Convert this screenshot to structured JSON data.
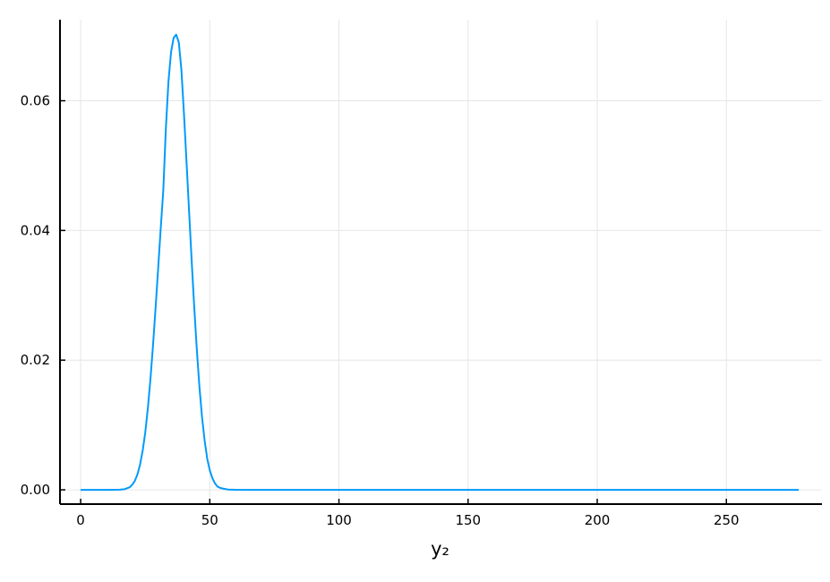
{
  "chart_data": {
    "type": "line",
    "title": "",
    "xlabel": "y₂",
    "ylabel": "",
    "xlim": [
      -8,
      287
    ],
    "ylim": [
      -0.0022,
      0.0725
    ],
    "x_ticks": [
      0,
      50,
      100,
      150,
      200,
      250
    ],
    "x_tick_labels": [
      "0",
      "50",
      "100",
      "150",
      "200",
      "250"
    ],
    "y_ticks": [
      0.0,
      0.02,
      0.04,
      0.06
    ],
    "y_tick_labels": [
      "0.00",
      "0.02",
      "0.04",
      "0.06"
    ],
    "grid": true,
    "legend": "none",
    "series": [
      {
        "color": "#009AFA",
        "x": [
          0,
          10,
          15,
          17,
          19,
          20,
          21,
          22,
          23,
          24,
          25,
          26,
          27,
          28,
          29,
          30,
          31,
          32,
          33,
          34,
          35,
          36,
          37,
          38,
          39,
          40,
          41,
          42,
          43,
          44,
          45,
          46,
          47,
          48,
          49,
          50,
          51,
          52,
          53,
          54,
          55,
          57,
          60,
          65,
          70,
          100,
          150,
          200,
          250,
          278
        ],
        "y": [
          0.0,
          0.0,
          2e-05,
          0.0001,
          0.0004,
          0.0008,
          0.0014,
          0.0024,
          0.0039,
          0.006,
          0.0088,
          0.0125,
          0.017,
          0.0222,
          0.028,
          0.0341,
          0.0403,
          0.0462,
          0.0558,
          0.063,
          0.0675,
          0.0697,
          0.0702,
          0.069,
          0.0648,
          0.058,
          0.0505,
          0.0428,
          0.0352,
          0.028,
          0.0215,
          0.0158,
          0.0112,
          0.0076,
          0.0048,
          0.003,
          0.0018,
          0.001,
          0.0005,
          0.0003,
          0.0002,
          5e-05,
          1e-05,
          0.0,
          0.0,
          0.0,
          0.0,
          0.0,
          0.0,
          0.0
        ]
      }
    ]
  }
}
